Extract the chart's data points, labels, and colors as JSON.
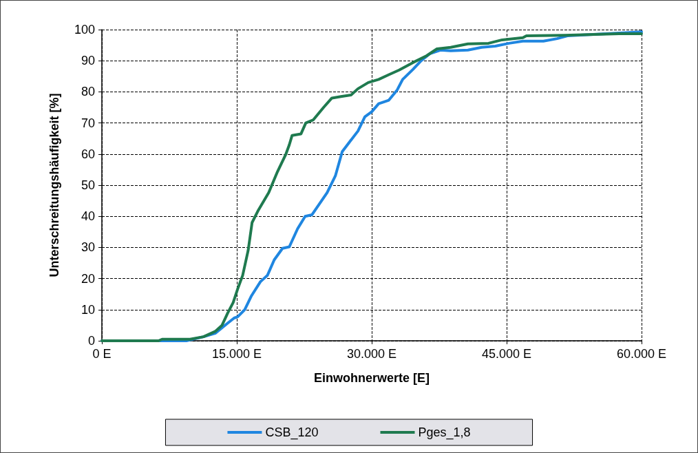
{
  "chart_data": {
    "type": "line",
    "xlabel": "Einwohnerwerte [E]",
    "ylabel": "Unterschreitungshäufigkeit [%]",
    "xlim": [
      0,
      60000
    ],
    "xticks": [
      {
        "value": 0,
        "label": "0 E"
      },
      {
        "value": 15000,
        "label": "15.000 E"
      },
      {
        "value": 30000,
        "label": "30.000 E"
      },
      {
        "value": 45000,
        "label": "45.000 E"
      },
      {
        "value": 60000,
        "label": "60.000 E"
      }
    ],
    "ylim": [
      0,
      100
    ],
    "yticks": [
      0,
      10,
      20,
      30,
      40,
      50,
      60,
      70,
      80,
      90,
      100
    ],
    "grid": true,
    "legend": "bottom",
    "marker": "none",
    "line_style": "solid",
    "series": [
      {
        "name": "CSB_120",
        "color": "#1f86e0",
        "x": [
          0,
          9400,
          11300,
          12600,
          14000,
          14700,
          15100,
          15880,
          16640,
          17630,
          18400,
          19160,
          20080,
          20840,
          21760,
          22600,
          23360,
          25040,
          25960,
          26720,
          28470,
          29240,
          30000,
          30770,
          31900,
          32830,
          33440,
          34580,
          35500,
          36490,
          37640,
          38780,
          40690,
          42220,
          43740,
          45270,
          46800,
          49090,
          50610,
          51760,
          60000
        ],
        "values": [
          0,
          0,
          1.3,
          2.4,
          5.7,
          7.3,
          7.7,
          10,
          14.5,
          19,
          21,
          26,
          29.7,
          30.2,
          36,
          40,
          40.5,
          47.6,
          53,
          60.8,
          67.4,
          72,
          73.6,
          76.2,
          77.3,
          80.6,
          84,
          87.2,
          90,
          92.3,
          93.4,
          93.2,
          93.4,
          94.3,
          94.7,
          95.6,
          96.3,
          96.3,
          97.1,
          98,
          99.3
        ]
      },
      {
        "name": "Pges_1,8",
        "color": "#1f7a4f",
        "x": [
          0,
          6300,
          6700,
          9800,
          11300,
          12600,
          13360,
          14000,
          14600,
          15100,
          15650,
          16260,
          16700,
          17400,
          18550,
          19470,
          20460,
          20840,
          21150,
          22140,
          22670,
          23510,
          24650,
          25570,
          26570,
          27700,
          28470,
          29620,
          30770,
          31900,
          33050,
          34580,
          36100,
          37250,
          38780,
          40690,
          42980,
          44500,
          46800,
          47200,
          51400,
          57500,
          60000
        ],
        "values": [
          0,
          0,
          0.5,
          0.5,
          1.3,
          3,
          5,
          9,
          12.3,
          16.7,
          21,
          29,
          38,
          42,
          47.6,
          54,
          60,
          63,
          66,
          66.5,
          70,
          71,
          75,
          78,
          78.5,
          79,
          81,
          83,
          84,
          85.5,
          87,
          89.4,
          91.6,
          93.8,
          94.3,
          95.4,
          95.6,
          96.7,
          97.4,
          98,
          98.2,
          98.7,
          98.7
        ]
      }
    ]
  }
}
